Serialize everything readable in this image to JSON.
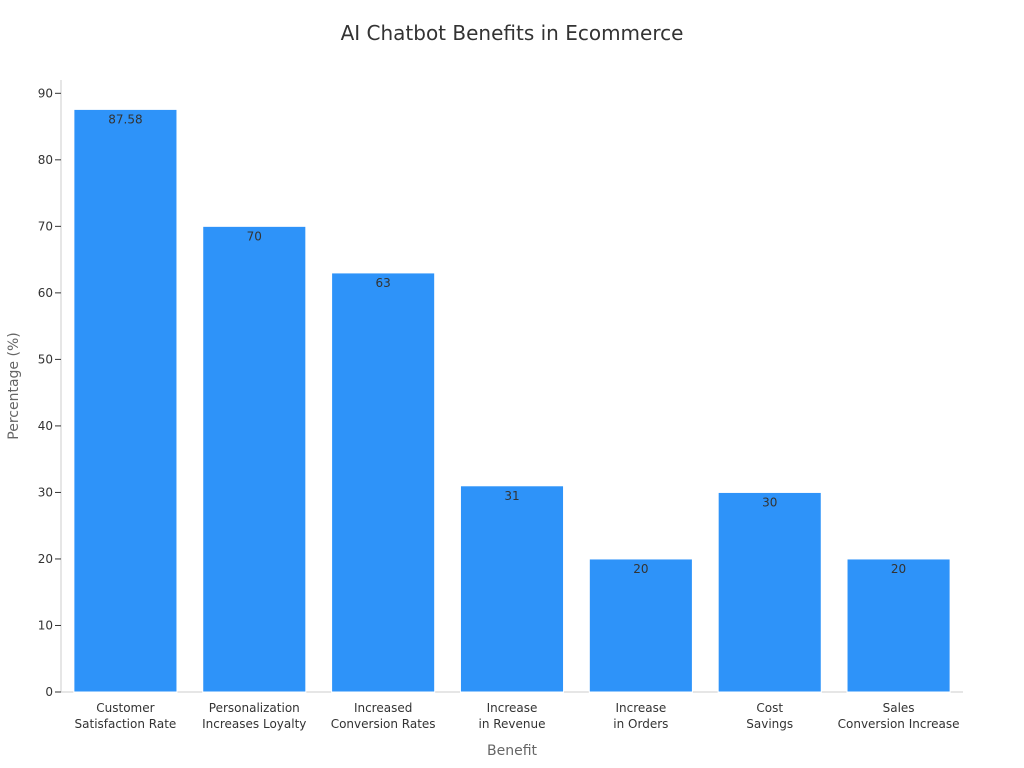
{
  "chart_data": {
    "type": "bar",
    "title": "AI Chatbot Benefits in Ecommerce",
    "xlabel": "Benefit",
    "ylabel": "Percentage (%)",
    "categories": [
      [
        "Customer",
        "Satisfaction Rate"
      ],
      [
        "Personalization",
        "Increases Loyalty"
      ],
      [
        "Increased",
        "Conversion Rates"
      ],
      [
        "Increase",
        "in Revenue"
      ],
      [
        "Increase",
        "in Orders"
      ],
      [
        "Cost",
        "Savings"
      ],
      [
        "Sales",
        "Conversion Increase"
      ]
    ],
    "values": [
      87.58,
      70,
      63,
      31,
      20,
      30,
      20
    ],
    "value_labels": [
      "87.58",
      "70",
      "63",
      "31",
      "20",
      "30",
      "20"
    ],
    "yticks": [
      0,
      10,
      20,
      30,
      40,
      50,
      60,
      70,
      80,
      90
    ],
    "ylim": [
      0,
      92
    ],
    "grid": false,
    "colors": {
      "bar": "#2e93f9",
      "bar_edge": "#ffffff",
      "axis": "#cccccc",
      "text": "#333333"
    }
  }
}
